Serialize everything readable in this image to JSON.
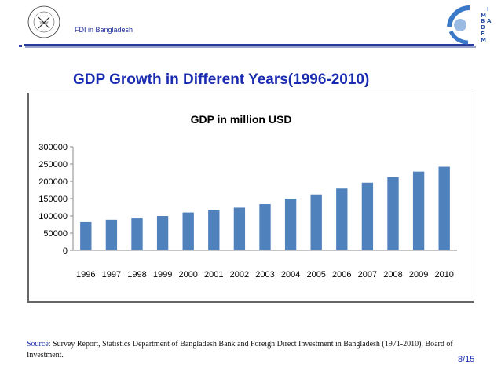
{
  "header": {
    "title": "FDI in Bangladesh",
    "left_logo_text": "BERGAKADEMIE TECHNISCHE UNIVERSITÄT FREIBERG",
    "right_logo_letters": [
      "I",
      "M",
      "B",
      "A",
      "D",
      "E",
      "M"
    ]
  },
  "slide": {
    "title": "GDP Growth in Different Years(1996-2010)",
    "page_number": "8/15"
  },
  "source": {
    "lead": "Source",
    "text": ": Survey Report, Statistics Department of Bangladesh Bank and Foreign Direct Investment in Bangladesh (1971-2010), Board of Investment."
  },
  "colors": {
    "bar": "#4f81bd",
    "accent": "#1a2db0"
  },
  "chart_data": {
    "type": "bar",
    "title": "GDP in million USD",
    "categories": [
      "1996",
      "1997",
      "1998",
      "1999",
      "2000",
      "2001",
      "2002",
      "2003",
      "2004",
      "2005",
      "2006",
      "2007",
      "2008",
      "2009",
      "2010"
    ],
    "values": [
      82000,
      89000,
      93000,
      100000,
      110000,
      118000,
      124000,
      134000,
      150000,
      162000,
      179000,
      196000,
      212000,
      228000,
      242000
    ],
    "yticks": [
      0,
      50000,
      100000,
      150000,
      200000,
      250000,
      300000
    ],
    "ylim": [
      0,
      300000
    ],
    "xlabel": "",
    "ylabel": "",
    "legend": "none",
    "grid": false
  }
}
